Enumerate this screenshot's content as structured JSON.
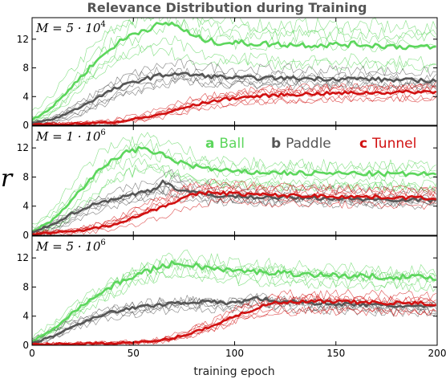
{
  "chart_data": {
    "type": "line",
    "title": "Relevance Distribution during Training",
    "xlabel": "training epoch",
    "ylabel": "r",
    "xlim": [
      0,
      200
    ],
    "ylim": [
      0,
      15
    ],
    "xticks": [
      0,
      50,
      100,
      150,
      200
    ],
    "yticks": [
      0,
      4,
      8,
      12
    ],
    "grid": false,
    "legend": {
      "placement": "top-right of middle panel",
      "entries": [
        {
          "letter": "a",
          "name": "Ball",
          "color": "#5cd65c"
        },
        {
          "letter": "b",
          "name": "Paddle",
          "color": "#555555"
        },
        {
          "letter": "c",
          "name": "Tunnel",
          "color": "#d11111"
        }
      ]
    },
    "panels": [
      {
        "label_prefix": "M = 5 · 10",
        "label_exp": "4",
        "series": [
          {
            "name": "Ball",
            "color": "#5cd65c",
            "x": [
              0,
              10,
              20,
              30,
              40,
              50,
              60,
              70,
              80,
              90,
              100,
              120,
              140,
              160,
              180,
              200
            ],
            "y": [
              0.8,
              2.5,
              5.5,
              8.5,
              11,
              12.8,
              13.8,
              14.2,
              12.3,
              11.6,
              11.5,
              11.3,
              11.2,
              11.3,
              11,
              10.8
            ]
          },
          {
            "name": "Paddle",
            "color": "#555555",
            "x": [
              0,
              10,
              20,
              30,
              40,
              50,
              60,
              70,
              80,
              90,
              100,
              120,
              140,
              160,
              180,
              200
            ],
            "y": [
              0.3,
              0.8,
              2,
              3.5,
              5,
              6,
              6.8,
              7.2,
              7,
              6.8,
              6.6,
              6.6,
              6.5,
              6.5,
              6.3,
              6.2
            ]
          },
          {
            "name": "Tunnel",
            "color": "#d11111",
            "x": [
              0,
              20,
              40,
              50,
              60,
              70,
              80,
              90,
              100,
              120,
              140,
              160,
              180,
              200
            ],
            "y": [
              0.1,
              0.2,
              0.4,
              0.8,
              1.3,
              2,
              2.8,
              3.4,
              3.8,
              4.2,
              4.4,
              4.5,
              4.6,
              4.7
            ]
          }
        ]
      },
      {
        "label_prefix": "M = 1 · 10",
        "label_exp": "6",
        "series": [
          {
            "name": "Ball",
            "color": "#5cd65c",
            "x": [
              0,
              10,
              20,
              30,
              40,
              50,
              60,
              70,
              80,
              90,
              100,
              120,
              140,
              160,
              180,
              200
            ],
            "y": [
              0.5,
              2,
              5,
              8,
              10.5,
              11.8,
              11.5,
              10.3,
              9.5,
              9,
              8.7,
              8.6,
              8.5,
              8.5,
              8.4,
              8.4
            ]
          },
          {
            "name": "Paddle",
            "color": "#555555",
            "x": [
              0,
              10,
              20,
              30,
              40,
              50,
              60,
              65,
              70,
              80,
              90,
              100,
              120,
              140,
              160,
              180,
              200
            ],
            "y": [
              0.3,
              1.5,
              3,
              4.2,
              5,
              5.6,
              6.3,
              7.5,
              6.5,
              5.8,
              5.5,
              5.3,
              5.2,
              5.1,
              5,
              4.9,
              4.8
            ]
          },
          {
            "name": "Tunnel",
            "color": "#d11111",
            "x": [
              0,
              20,
              30,
              40,
              50,
              60,
              70,
              80,
              90,
              100,
              120,
              140,
              160,
              180,
              200
            ],
            "y": [
              0.2,
              0.5,
              0.9,
              1.5,
              2.4,
              3.5,
              4.6,
              5.6,
              5.9,
              5.7,
              5.5,
              5.4,
              5.3,
              5.2,
              5.1
            ]
          }
        ]
      },
      {
        "label_prefix": "M = 5 · 10",
        "label_exp": "6",
        "series": [
          {
            "name": "Ball",
            "color": "#5cd65c",
            "x": [
              0,
              10,
              20,
              30,
              40,
              50,
              60,
              70,
              80,
              90,
              100,
              120,
              140,
              160,
              180,
              200
            ],
            "y": [
              0.5,
              2.2,
              4.5,
              6.5,
              8.2,
              9.5,
              10.5,
              11.2,
              11,
              10.5,
              10.2,
              10,
              9.7,
              9.5,
              9.4,
              9.3
            ]
          },
          {
            "name": "Paddle",
            "color": "#555555",
            "x": [
              0,
              10,
              20,
              30,
              40,
              50,
              60,
              70,
              80,
              90,
              100,
              110,
              120,
              140,
              160,
              180,
              200
            ],
            "y": [
              0.3,
              1.2,
              2.6,
              3.8,
              4.6,
              5.1,
              5.5,
              5.8,
              6,
              5.9,
              5.8,
              6.5,
              6.1,
              5.8,
              5.6,
              5.4,
              5.3
            ]
          },
          {
            "name": "Tunnel",
            "color": "#d11111",
            "x": [
              0,
              20,
              40,
              60,
              70,
              80,
              90,
              100,
              110,
              120,
              140,
              160,
              180,
              200
            ],
            "y": [
              0.1,
              0.2,
              0.3,
              0.5,
              1,
              1.8,
              2.8,
              4,
              5,
              5.8,
              6,
              5.9,
              5.8,
              5.7
            ]
          }
        ]
      }
    ]
  }
}
